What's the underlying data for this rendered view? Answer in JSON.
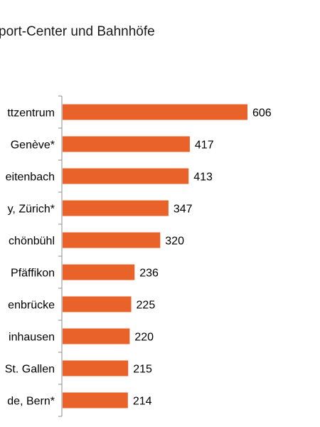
{
  "chart_data": {
    "type": "bar",
    "orientation": "horizontal",
    "title": "port-Center und Bahnhöfe",
    "categories": [
      "ttzentrum",
      "Genève*",
      "eitenbach",
      "y, Zürich*",
      "chönbühl",
      "Pfäffikon",
      "enbrücke",
      "inhausen",
      "St. Gallen",
      "de, Bern*"
    ],
    "values": [
      606,
      417,
      413,
      347,
      320,
      236,
      225,
      220,
      215,
      214
    ],
    "bar_color": "#e8622a",
    "grid": false,
    "legend": "none"
  }
}
